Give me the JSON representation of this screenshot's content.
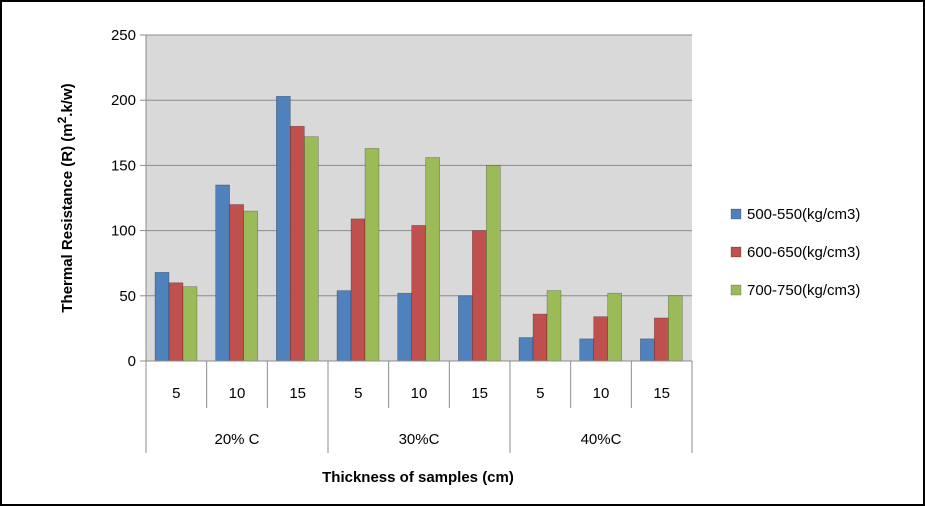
{
  "chart_data": {
    "type": "bar",
    "title": "",
    "xlabel": "Thickness of samples (cm)",
    "ylabel_main": "Thermal Resistance (R)  (m",
    "ylabel_sup": "2",
    "ylabel_tail": ".k/w)",
    "ylim": [
      0,
      250
    ],
    "yticks": [
      0,
      50,
      100,
      150,
      200,
      250
    ],
    "grid": true,
    "legend_position": "right",
    "group_labels": [
      "20% C",
      "30%C",
      "40%C"
    ],
    "categories": [
      "5",
      "10",
      "15",
      "5",
      "10",
      "15",
      "5",
      "10",
      "15"
    ],
    "series": [
      {
        "name": "500-550(kg/cm3)",
        "color": "#4F81BD",
        "values": [
          68,
          135,
          203,
          54,
          52,
          50,
          18,
          17,
          17
        ]
      },
      {
        "name": "600-650(kg/cm3)",
        "color": "#C0504D",
        "values": [
          60,
          120,
          180,
          109,
          104,
          100,
          36,
          34,
          33
        ]
      },
      {
        "name": "700-750(kg/cm3)",
        "color": "#9BBB59",
        "values": [
          57,
          115,
          172,
          163,
          156,
          150,
          54,
          52,
          50
        ]
      }
    ],
    "plot_background": "#D9D9D9"
  }
}
